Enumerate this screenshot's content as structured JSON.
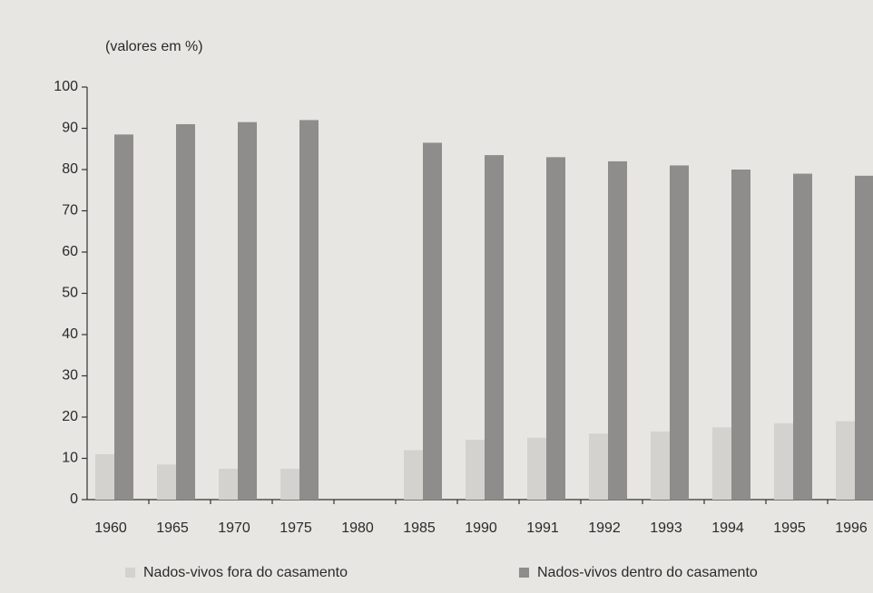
{
  "chart_data": {
    "type": "bar",
    "y_label": "(valores em %)",
    "categories": [
      "1960",
      "1965",
      "1970",
      "1975",
      "1980",
      "1985",
      "1990",
      "1991",
      "1992",
      "1993",
      "1994",
      "1995",
      "1996"
    ],
    "series": [
      {
        "name": "Nados-vivos fora do casamento",
        "color": "#d4d2ce",
        "values": [
          11,
          8.5,
          7.5,
          7.5,
          null,
          12,
          14.5,
          15,
          16,
          16.5,
          17.5,
          18.5,
          19
        ]
      },
      {
        "name": "Nados-vivos dentro do casamento",
        "color": "#8e8d8b",
        "values": [
          88.5,
          91,
          91.5,
          92,
          null,
          86.5,
          83.5,
          83,
          82,
          81,
          80,
          79,
          78.5
        ]
      }
    ],
    "ylim": [
      0,
      100
    ],
    "yticks": [
      0,
      10,
      20,
      30,
      40,
      50,
      60,
      70,
      80,
      90,
      100
    ],
    "grid": false,
    "legend": "bottom"
  }
}
